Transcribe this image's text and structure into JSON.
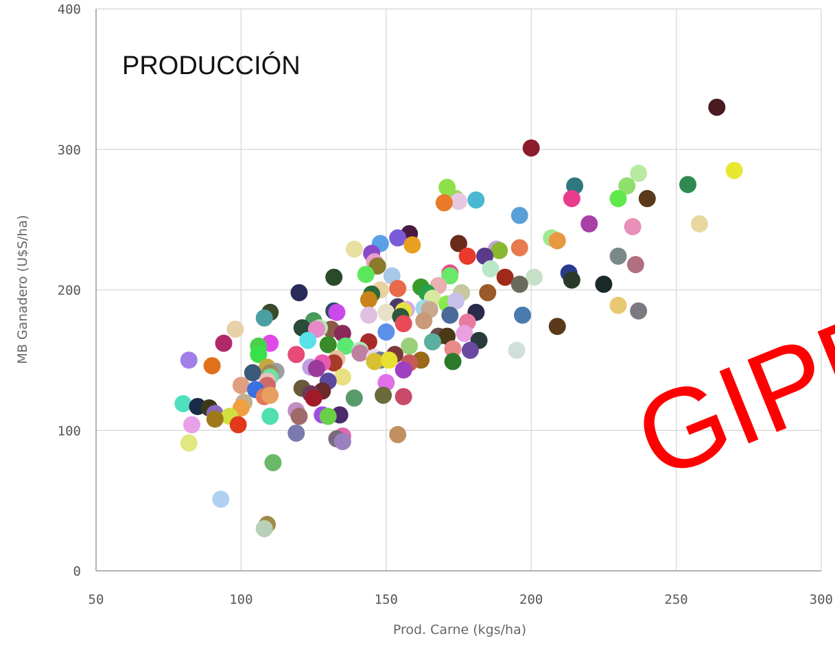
{
  "chart_data": {
    "type": "scatter",
    "title": "PRODUCCIÓN",
    "xlabel": "Prod. Carne (kgs/ha)",
    "ylabel": "MB Ganadero (U$S/ha)",
    "xlim": [
      50,
      300
    ],
    "ylim": [
      0,
      400
    ],
    "xticks": [
      50,
      100,
      150,
      200,
      250,
      300
    ],
    "yticks": [
      0,
      100,
      200,
      300,
      400
    ],
    "grid": true,
    "watermark": "GIPP",
    "points": [
      {
        "x": 264,
        "y": 330,
        "color": "#4a1a22"
      },
      {
        "x": 200,
        "y": 301,
        "color": "#8c1c2c"
      },
      {
        "x": 270,
        "y": 285,
        "color": "#e8e830"
      },
      {
        "x": 237,
        "y": 283,
        "color": "#b8eaa0"
      },
      {
        "x": 254,
        "y": 275,
        "color": "#2e8a50"
      },
      {
        "x": 215,
        "y": 274,
        "color": "#2f7880"
      },
      {
        "x": 233,
        "y": 274,
        "color": "#8ee06a"
      },
      {
        "x": 230,
        "y": 265,
        "color": "#5ee84a"
      },
      {
        "x": 240,
        "y": 265,
        "color": "#5a3a1a"
      },
      {
        "x": 214,
        "y": 265,
        "color": "#e83c8c"
      },
      {
        "x": 171,
        "y": 273,
        "color": "#8ee04a"
      },
      {
        "x": 174,
        "y": 265,
        "color": "#9cd85a"
      },
      {
        "x": 175,
        "y": 263,
        "color": "#e8c8e0"
      },
      {
        "x": 181,
        "y": 264,
        "color": "#4ab8d0"
      },
      {
        "x": 170,
        "y": 262,
        "color": "#e87a28"
      },
      {
        "x": 196,
        "y": 253,
        "color": "#5aa0d8"
      },
      {
        "x": 258,
        "y": 247,
        "color": "#e8d8a0"
      },
      {
        "x": 220,
        "y": 247,
        "color": "#a840a8"
      },
      {
        "x": 235,
        "y": 245,
        "color": "#e890b8"
      },
      {
        "x": 158,
        "y": 240,
        "color": "#4a1a40"
      },
      {
        "x": 154,
        "y": 237,
        "color": "#7a5ad8"
      },
      {
        "x": 207,
        "y": 237,
        "color": "#a0e890"
      },
      {
        "x": 209,
        "y": 235,
        "color": "#e89840"
      },
      {
        "x": 159,
        "y": 232,
        "color": "#e8a020"
      },
      {
        "x": 175,
        "y": 233,
        "color": "#6a2a1a"
      },
      {
        "x": 196,
        "y": 230,
        "color": "#e87a50"
      },
      {
        "x": 188,
        "y": 229,
        "color": "#c8a0e8"
      },
      {
        "x": 189,
        "y": 228,
        "color": "#8ab830"
      },
      {
        "x": 139,
        "y": 229,
        "color": "#e8e0a0"
      },
      {
        "x": 148,
        "y": 233,
        "color": "#5aa0e8"
      },
      {
        "x": 145,
        "y": 226,
        "color": "#8a4ac8"
      },
      {
        "x": 184,
        "y": 224,
        "color": "#5a3a8a"
      },
      {
        "x": 178,
        "y": 224,
        "color": "#e83a2a"
      },
      {
        "x": 230,
        "y": 224,
        "color": "#7a8a8a"
      },
      {
        "x": 146,
        "y": 220,
        "color": "#e8a0c8"
      },
      {
        "x": 186,
        "y": 215,
        "color": "#b8e8c8"
      },
      {
        "x": 236,
        "y": 218,
        "color": "#b07080"
      },
      {
        "x": 147,
        "y": 217,
        "color": "#8a7a2a"
      },
      {
        "x": 172,
        "y": 212,
        "color": "#e84a8a"
      },
      {
        "x": 213,
        "y": 212,
        "color": "#2a3a8a"
      },
      {
        "x": 152,
        "y": 210,
        "color": "#a8c8e8"
      },
      {
        "x": 143,
        "y": 211,
        "color": "#5ae85a"
      },
      {
        "x": 172,
        "y": 210,
        "color": "#6ae86a"
      },
      {
        "x": 132,
        "y": 209,
        "color": "#2a4a2a"
      },
      {
        "x": 191,
        "y": 209,
        "color": "#a02a1a"
      },
      {
        "x": 201,
        "y": 209,
        "color": "#c8e0c8"
      },
      {
        "x": 214,
        "y": 207,
        "color": "#2a3a2a"
      },
      {
        "x": 196,
        "y": 204,
        "color": "#6a6a5a"
      },
      {
        "x": 225,
        "y": 204,
        "color": "#1a2a2a"
      },
      {
        "x": 168,
        "y": 203,
        "color": "#e8b0b0"
      },
      {
        "x": 162,
        "y": 202,
        "color": "#3a9a2a"
      },
      {
        "x": 154,
        "y": 201,
        "color": "#e86a4a"
      },
      {
        "x": 148,
        "y": 200,
        "color": "#e8d0a0"
      },
      {
        "x": 164,
        "y": 198,
        "color": "#2aa04a"
      },
      {
        "x": 185,
        "y": 198,
        "color": "#9a5a2a"
      },
      {
        "x": 120,
        "y": 198,
        "color": "#2a2a5a"
      },
      {
        "x": 145,
        "y": 197,
        "color": "#2a6a3a"
      },
      {
        "x": 176,
        "y": 198,
        "color": "#c8c8a0"
      },
      {
        "x": 166,
        "y": 194,
        "color": "#d8e8a0"
      },
      {
        "x": 144,
        "y": 193,
        "color": "#c8841a"
      },
      {
        "x": 171,
        "y": 190,
        "color": "#8ae84a"
      },
      {
        "x": 174,
        "y": 192,
        "color": "#c8c0e8"
      },
      {
        "x": 230,
        "y": 189,
        "color": "#e8c870"
      },
      {
        "x": 154,
        "y": 188,
        "color": "#4a3a6a"
      },
      {
        "x": 163,
        "y": 187,
        "color": "#a0d8e8"
      },
      {
        "x": 165,
        "y": 186,
        "color": "#c8a890"
      },
      {
        "x": 157,
        "y": 186,
        "color": "#d8a8e8"
      },
      {
        "x": 237,
        "y": 185,
        "color": "#7a7a80"
      },
      {
        "x": 110,
        "y": 184,
        "color": "#3a4a2a"
      },
      {
        "x": 132,
        "y": 185,
        "color": "#2a4a6a"
      },
      {
        "x": 133,
        "y": 184,
        "color": "#c84ae8"
      },
      {
        "x": 156,
        "y": 185,
        "color": "#e8e040"
      },
      {
        "x": 150,
        "y": 184,
        "color": "#e8e0c8"
      },
      {
        "x": 181,
        "y": 184,
        "color": "#2a2a4a"
      },
      {
        "x": 197,
        "y": 182,
        "color": "#4a7ab0"
      },
      {
        "x": 172,
        "y": 182,
        "color": "#4a6a9a"
      },
      {
        "x": 144,
        "y": 182,
        "color": "#e0c0e0"
      },
      {
        "x": 155,
        "y": 181,
        "color": "#2a5a3a"
      },
      {
        "x": 108,
        "y": 180,
        "color": "#4aa0a0"
      },
      {
        "x": 125,
        "y": 178,
        "color": "#4a9a5a"
      },
      {
        "x": 163,
        "y": 178,
        "color": "#c89a7a"
      },
      {
        "x": 178,
        "y": 177,
        "color": "#e87aa0"
      },
      {
        "x": 156,
        "y": 176,
        "color": "#e84a5a"
      },
      {
        "x": 131,
        "y": 172,
        "color": "#8a5a4a"
      },
      {
        "x": 127,
        "y": 173,
        "color": "#b0e8b0"
      },
      {
        "x": 121,
        "y": 173,
        "color": "#2a4a3a"
      },
      {
        "x": 126,
        "y": 172,
        "color": "#e888c8"
      },
      {
        "x": 98,
        "y": 172,
        "color": "#e8d0a8"
      },
      {
        "x": 209,
        "y": 174,
        "color": "#5a3a1a"
      },
      {
        "x": 135,
        "y": 169,
        "color": "#8a2a5a"
      },
      {
        "x": 177,
        "y": 169,
        "color": "#e8a0e0"
      },
      {
        "x": 150,
        "y": 170,
        "color": "#5a90e8"
      },
      {
        "x": 168,
        "y": 167,
        "color": "#6a4a4a"
      },
      {
        "x": 171,
        "y": 167,
        "color": "#4a3a1a"
      },
      {
        "x": 144,
        "y": 163,
        "color": "#a82a2a"
      },
      {
        "x": 123,
        "y": 164,
        "color": "#5ae0e8"
      },
      {
        "x": 182,
        "y": 164,
        "color": "#2a3a3a"
      },
      {
        "x": 166,
        "y": 163,
        "color": "#5ab0a0"
      },
      {
        "x": 94,
        "y": 162,
        "color": "#b02a6a"
      },
      {
        "x": 110,
        "y": 162,
        "color": "#e04ae8"
      },
      {
        "x": 130,
        "y": 161,
        "color": "#3a8a2a"
      },
      {
        "x": 106,
        "y": 160,
        "color": "#4ad04a"
      },
      {
        "x": 136,
        "y": 160,
        "color": "#5ae870"
      },
      {
        "x": 158,
        "y": 160,
        "color": "#9ad07a"
      },
      {
        "x": 141,
        "y": 157,
        "color": "#b0e8c0"
      },
      {
        "x": 173,
        "y": 158,
        "color": "#e88a8a"
      },
      {
        "x": 195,
        "y": 157,
        "color": "#d0e0d8"
      },
      {
        "x": 179,
        "y": 157,
        "color": "#6a4aa0"
      },
      {
        "x": 106,
        "y": 154,
        "color": "#3ae04a"
      },
      {
        "x": 119,
        "y": 154,
        "color": "#e84a7a"
      },
      {
        "x": 141,
        "y": 155,
        "color": "#c080a0"
      },
      {
        "x": 153,
        "y": 154,
        "color": "#7a3a3a"
      },
      {
        "x": 146,
        "y": 152,
        "color": "#e8d8e8"
      },
      {
        "x": 133,
        "y": 151,
        "color": "#e8c0a0"
      },
      {
        "x": 148,
        "y": 150,
        "color": "#6a7aa0"
      },
      {
        "x": 82,
        "y": 150,
        "color": "#a080e8"
      },
      {
        "x": 162,
        "y": 150,
        "color": "#9a6a1a"
      },
      {
        "x": 173,
        "y": 149,
        "color": "#2a7a2a"
      },
      {
        "x": 146,
        "y": 149,
        "color": "#d8c030"
      },
      {
        "x": 151,
        "y": 150,
        "color": "#e8e030"
      },
      {
        "x": 132,
        "y": 148,
        "color": "#a83a2a"
      },
      {
        "x": 128,
        "y": 148,
        "color": "#e85ab0"
      },
      {
        "x": 158,
        "y": 148,
        "color": "#c85a5a"
      },
      {
        "x": 109,
        "y": 145,
        "color": "#c8a840"
      },
      {
        "x": 124,
        "y": 145,
        "color": "#c0a0e0"
      },
      {
        "x": 126,
        "y": 144,
        "color": "#9a3a9a"
      },
      {
        "x": 90,
        "y": 146,
        "color": "#e0701a"
      },
      {
        "x": 112,
        "y": 142,
        "color": "#9aa0a0"
      },
      {
        "x": 110,
        "y": 141,
        "color": "#a08a5a"
      },
      {
        "x": 104,
        "y": 141,
        "color": "#3a5a7a"
      },
      {
        "x": 156,
        "y": 143,
        "color": "#a040c0"
      },
      {
        "x": 110,
        "y": 138,
        "color": "#70e0a0"
      },
      {
        "x": 135,
        "y": 138,
        "color": "#e8e080"
      },
      {
        "x": 130,
        "y": 135,
        "color": "#5a4aa0"
      },
      {
        "x": 109,
        "y": 135,
        "color": "#e8c0c0"
      },
      {
        "x": 150,
        "y": 134,
        "color": "#e070e8"
      },
      {
        "x": 100,
        "y": 132,
        "color": "#e0a080"
      },
      {
        "x": 109,
        "y": 132,
        "color": "#d06a6a"
      },
      {
        "x": 121,
        "y": 130,
        "color": "#6a5a3a"
      },
      {
        "x": 105,
        "y": 129,
        "color": "#3a70e0"
      },
      {
        "x": 128,
        "y": 128,
        "color": "#6a2a2a"
      },
      {
        "x": 124,
        "y": 126,
        "color": "#6a3a5a"
      },
      {
        "x": 149,
        "y": 125,
        "color": "#6a6a3a"
      },
      {
        "x": 156,
        "y": 124,
        "color": "#c84a6a"
      },
      {
        "x": 139,
        "y": 123,
        "color": "#5a9a6a"
      },
      {
        "x": 125,
        "y": 123,
        "color": "#a01a2a"
      },
      {
        "x": 108,
        "y": 124,
        "color": "#e07a5a"
      },
      {
        "x": 110,
        "y": 125,
        "color": "#e8a060"
      },
      {
        "x": 101,
        "y": 120,
        "color": "#c0b090"
      },
      {
        "x": 80,
        "y": 119,
        "color": "#50e0c0"
      },
      {
        "x": 85,
        "y": 117,
        "color": "#1a2a4a"
      },
      {
        "x": 89,
        "y": 116,
        "color": "#3a3a1a"
      },
      {
        "x": 100,
        "y": 116,
        "color": "#f0a040"
      },
      {
        "x": 119,
        "y": 114,
        "color": "#c090c0"
      },
      {
        "x": 91,
        "y": 112,
        "color": "#8a6ac0"
      },
      {
        "x": 128,
        "y": 111,
        "color": "#a050e0"
      },
      {
        "x": 134,
        "y": 111,
        "color": "#4a2a6a"
      },
      {
        "x": 96,
        "y": 110,
        "color": "#d0e040"
      },
      {
        "x": 110,
        "y": 110,
        "color": "#50e0b0"
      },
      {
        "x": 120,
        "y": 110,
        "color": "#a06a6a"
      },
      {
        "x": 130,
        "y": 110,
        "color": "#6ad04a"
      },
      {
        "x": 91,
        "y": 108,
        "color": "#a07a1a"
      },
      {
        "x": 99,
        "y": 104,
        "color": "#e03a1a"
      },
      {
        "x": 83,
        "y": 104,
        "color": "#e8a0e8"
      },
      {
        "x": 119,
        "y": 98,
        "color": "#7a7ab0"
      },
      {
        "x": 154,
        "y": 97,
        "color": "#c09060"
      },
      {
        "x": 135,
        "y": 96,
        "color": "#e06ab0"
      },
      {
        "x": 133,
        "y": 94,
        "color": "#7a6a7a"
      },
      {
        "x": 135,
        "y": 92,
        "color": "#9a80c0"
      },
      {
        "x": 82,
        "y": 91,
        "color": "#e0e880"
      },
      {
        "x": 111,
        "y": 77,
        "color": "#6ab86a"
      },
      {
        "x": 93,
        "y": 51,
        "color": "#b0d0f0"
      },
      {
        "x": 109,
        "y": 33,
        "color": "#a08a4a"
      },
      {
        "x": 108,
        "y": 30,
        "color": "#b8d0b8"
      }
    ]
  }
}
